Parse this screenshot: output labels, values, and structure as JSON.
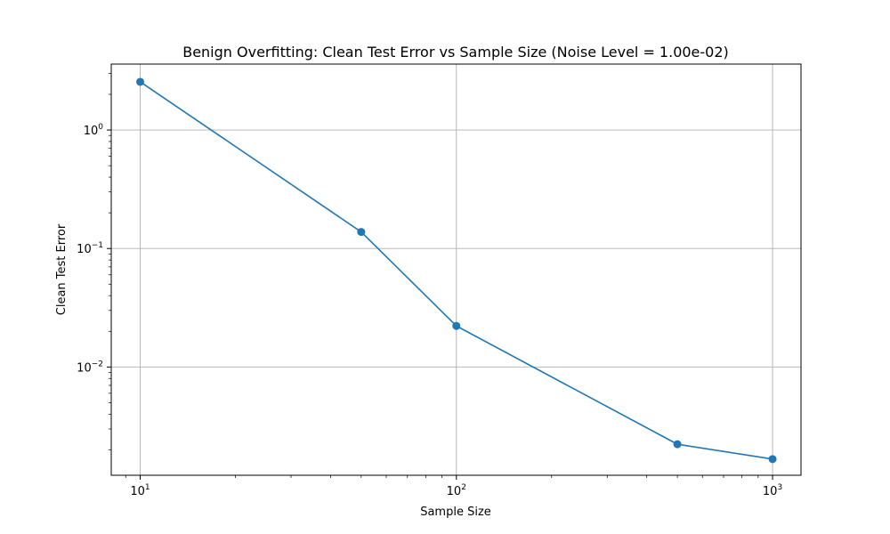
{
  "chart_data": {
    "type": "line",
    "title": "Benign Overfitting: Clean Test Error vs Sample Size (Noise Level = 1.00e-02)",
    "xlabel": "Sample Size",
    "ylabel": "Clean Test Error",
    "xscale": "log",
    "yscale": "log",
    "xlim": [
      8.1,
      1230
    ],
    "ylim": [
      0.00122,
      3.6
    ],
    "grid": true,
    "legend": "none",
    "x_ticks": [
      {
        "value": 10,
        "base": "10",
        "exp": "1"
      },
      {
        "value": 100,
        "base": "10",
        "exp": "2"
      },
      {
        "value": 1000,
        "base": "10",
        "exp": "3"
      }
    ],
    "y_ticks": [
      {
        "value": 1,
        "base": "10",
        "exp": "0"
      },
      {
        "value": 0.1,
        "base": "10",
        "exp": "−1"
      },
      {
        "value": 0.01,
        "base": "10",
        "exp": "−2"
      }
    ],
    "series": [
      {
        "x": [
          10,
          50,
          100,
          500,
          1000
        ],
        "y": [
          2.55,
          0.138,
          0.0222,
          0.00223,
          0.00167
        ],
        "color": "#1f77b4",
        "marker": "circle"
      }
    ]
  }
}
